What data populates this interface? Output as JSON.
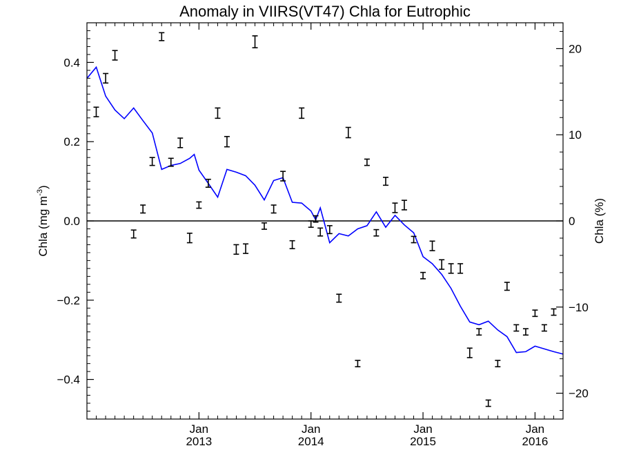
{
  "chart_data": {
    "type": "line",
    "title": "Anomaly in VIIRS(VT47) Chla for Eutrophic",
    "ylabel": "Chla (mg m",
    "ylabel_sup": "-3",
    "ylabel_close": ")",
    "y2label": "Chla (%)",
    "xlim": [
      2012.0,
      2016.25
    ],
    "ylim": [
      -0.5,
      0.5
    ],
    "y2lim": [
      -23,
      23
    ],
    "zero_line": true,
    "x_ticks": [
      {
        "x": 2013.0,
        "month": "Jan",
        "year": "2013"
      },
      {
        "x": 2014.0,
        "month": "Jan",
        "year": "2014"
      },
      {
        "x": 2015.0,
        "month": "Jan",
        "year": "2015"
      },
      {
        "x": 2016.0,
        "month": "Jan",
        "year": "2016"
      }
    ],
    "y_ticks": [
      {
        "v": 0.4,
        "label": "0.4"
      },
      {
        "v": 0.2,
        "label": "0.2"
      },
      {
        "v": 0.0,
        "label": "0.0"
      },
      {
        "v": -0.2,
        "label": "−0.2"
      },
      {
        "v": -0.4,
        "label": "−0.4"
      }
    ],
    "y2_ticks": [
      {
        "v": 20,
        "label": "20"
      },
      {
        "v": 10,
        "label": "10"
      },
      {
        "v": 0,
        "label": "0"
      },
      {
        "v": -10,
        "label": "−10"
      },
      {
        "v": -20,
        "label": "−20"
      }
    ],
    "series": [
      {
        "kind": "line",
        "color": "#0000ff",
        "x": [
          2012.0,
          2012.083,
          2012.167,
          2012.25,
          2012.333,
          2012.417,
          2012.5,
          2012.583,
          2012.667,
          2012.75,
          2012.833,
          2012.917,
          2012.958,
          2013.0,
          2013.083,
          2013.167,
          2013.25,
          2013.333,
          2013.417,
          2013.5,
          2013.583,
          2013.667,
          2013.75,
          2013.833,
          2013.917,
          2014.0,
          2014.042,
          2014.083,
          2014.167,
          2014.25,
          2014.333,
          2014.417,
          2014.5,
          2014.583,
          2014.667,
          2014.75,
          2014.833,
          2014.917,
          2015.0,
          2015.083,
          2015.167,
          2015.25,
          2015.333,
          2015.417,
          2015.5,
          2015.583,
          2015.667,
          2015.75,
          2015.833,
          2015.917,
          2016.0,
          2016.083,
          2016.167,
          2016.25
        ],
        "y": [
          0.36,
          0.388,
          0.315,
          0.28,
          0.258,
          0.285,
          0.253,
          0.222,
          0.13,
          0.14,
          0.145,
          0.158,
          0.168,
          0.128,
          0.095,
          0.06,
          0.13,
          0.123,
          0.114,
          0.09,
          0.053,
          0.102,
          0.109,
          0.047,
          0.045,
          0.025,
          0.003,
          0.033,
          -0.055,
          -0.032,
          -0.038,
          -0.02,
          -0.012,
          0.023,
          -0.016,
          0.014,
          -0.01,
          -0.03,
          -0.09,
          -0.108,
          -0.135,
          -0.17,
          -0.215,
          -0.255,
          -0.262,
          -0.253,
          -0.275,
          -0.292,
          -0.332,
          -0.33,
          -0.316,
          -0.323,
          -0.33,
          -0.336
        ]
      },
      {
        "kind": "errorbar",
        "color": "#000000",
        "x": [
          2012.083,
          2012.167,
          2012.25,
          2012.417,
          2012.5,
          2012.583,
          2012.667,
          2012.75,
          2012.833,
          2012.917,
          2013.0,
          2013.083,
          2013.167,
          2013.25,
          2013.333,
          2013.417,
          2013.5,
          2013.583,
          2013.667,
          2013.75,
          2013.833,
          2013.917,
          2014.0,
          2014.042,
          2014.083,
          2014.167,
          2014.25,
          2014.333,
          2014.417,
          2014.5,
          2014.583,
          2014.667,
          2014.75,
          2014.833,
          2014.917,
          2015.0,
          2015.083,
          2015.167,
          2015.25,
          2015.333,
          2015.417,
          2015.5,
          2015.583,
          2015.667,
          2015.75,
          2015.833,
          2015.917,
          2016.0,
          2016.083,
          2016.167
        ],
        "y": [
          0.275,
          0.36,
          0.418,
          -0.033,
          0.03,
          0.15,
          0.465,
          0.148,
          0.197,
          -0.043,
          0.04,
          0.095,
          0.272,
          0.2,
          -0.072,
          -0.07,
          0.452,
          -0.013,
          0.03,
          0.113,
          -0.06,
          0.272,
          -0.008,
          0.005,
          -0.028,
          -0.022,
          -0.195,
          0.223,
          -0.36,
          0.148,
          -0.03,
          0.1,
          0.033,
          0.04,
          -0.047,
          -0.138,
          -0.063,
          -0.11,
          -0.12,
          -0.12,
          -0.333,
          -0.28,
          -0.46,
          -0.36,
          -0.165,
          -0.27,
          -0.28,
          -0.233,
          -0.27,
          -0.23
        ],
        "err": [
          0.012,
          0.012,
          0.012,
          0.01,
          0.01,
          0.01,
          0.01,
          0.01,
          0.012,
          0.012,
          0.008,
          0.01,
          0.013,
          0.013,
          0.012,
          0.012,
          0.015,
          0.008,
          0.01,
          0.012,
          0.01,
          0.013,
          0.008,
          0.008,
          0.01,
          0.01,
          0.01,
          0.013,
          0.008,
          0.008,
          0.008,
          0.01,
          0.012,
          0.012,
          0.008,
          0.008,
          0.012,
          0.012,
          0.012,
          0.012,
          0.012,
          0.008,
          0.008,
          0.008,
          0.01,
          0.008,
          0.008,
          0.008,
          0.008,
          0.008
        ]
      }
    ]
  }
}
